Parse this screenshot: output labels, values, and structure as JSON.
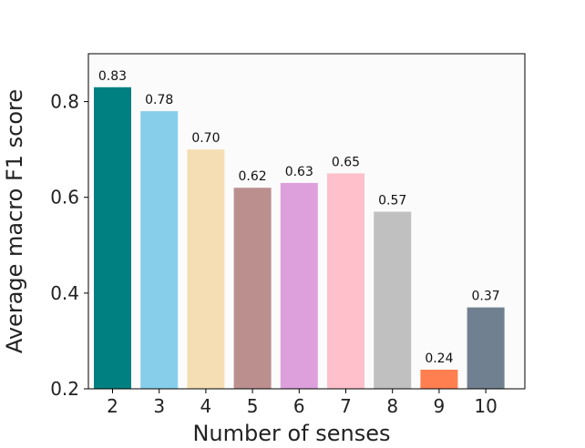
{
  "chart_data": {
    "type": "bar",
    "xlabel": "Number of senses",
    "ylabel": "Average macro F1 score",
    "ylim": [
      0.2,
      0.9
    ],
    "yticks": [
      "0.2",
      "0.4",
      "0.6",
      "0.8"
    ],
    "categories": [
      "2",
      "3",
      "4",
      "5",
      "6",
      "7",
      "8",
      "9",
      "10"
    ],
    "values": [
      0.83,
      0.78,
      0.7,
      0.62,
      0.63,
      0.65,
      0.57,
      0.24,
      0.37
    ],
    "data_labels": [
      "0.83",
      "0.78",
      "0.70",
      "0.62",
      "0.63",
      "0.65",
      "0.57",
      "0.24",
      "0.37"
    ],
    "colors": [
      "#008080",
      "#87ceeb",
      "#f5deb3",
      "#bc8f8f",
      "#dda0dd",
      "#ffc0cb",
      "#c0c0c0",
      "#ff7f50",
      "#708090"
    ],
    "plot_background": "#fbfbfb",
    "grid": false,
    "legend": "none"
  }
}
